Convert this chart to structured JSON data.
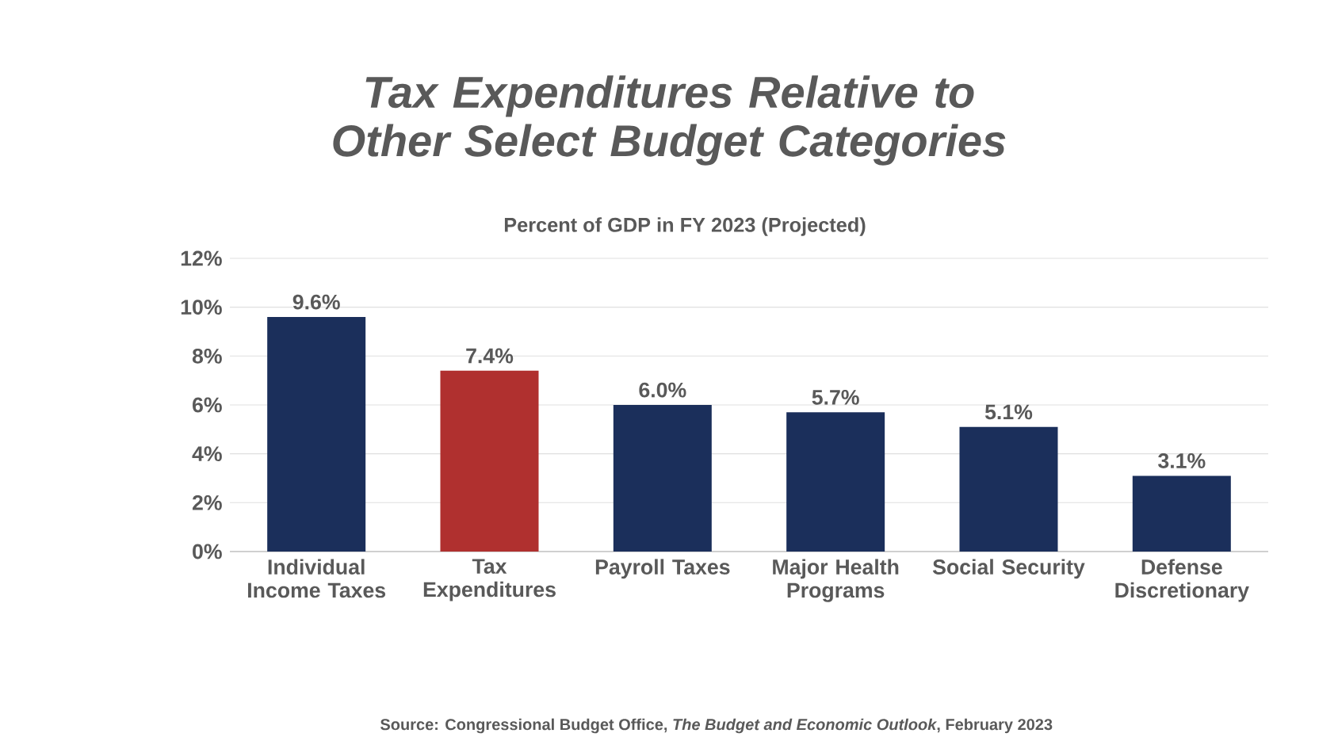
{
  "chart_data": {
    "type": "bar",
    "title": "Tax Expenditures Relative to Other Select Budget Categories",
    "subtitle": "Percent of GDP in FY 2023 (Projected)",
    "categories": [
      "Individual Income Taxes",
      "Tax Expenditures",
      "Payroll Taxes",
      "Major Health Programs",
      "Social Security",
      "Defense Discretionary"
    ],
    "values": [
      9.6,
      7.4,
      6.0,
      5.7,
      5.1,
      3.1
    ],
    "value_labels": [
      "9.6%",
      "7.4%",
      "6.0%",
      "5.7%",
      "5.1%",
      "3.1%"
    ],
    "colors": [
      "#1b2f5b",
      "#b0302f",
      "#1b2f5b",
      "#1b2f5b",
      "#1b2f5b",
      "#1b2f5b"
    ],
    "ylim": [
      0,
      12
    ],
    "yticks": [
      {
        "value": 0,
        "label": "0%"
      },
      {
        "value": 2,
        "label": "2%"
      },
      {
        "value": 4,
        "label": "4%"
      },
      {
        "value": 6,
        "label": "6%"
      },
      {
        "value": 8,
        "label": "8%"
      },
      {
        "value": 10,
        "label": "10%"
      },
      {
        "value": 12,
        "label": "12%"
      }
    ],
    "grid": "y",
    "annotations": [
      "Source: Congressional Budget Office, *The Budget and Economic Outlook*, February 2023"
    ]
  }
}
